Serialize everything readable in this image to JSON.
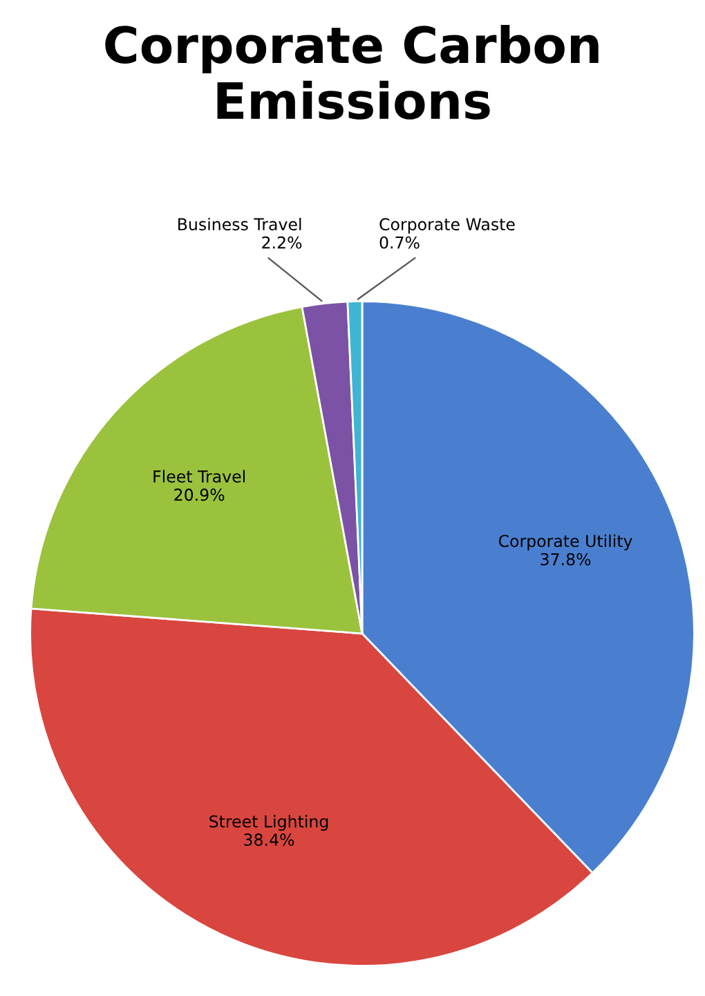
{
  "chart_data": {
    "type": "pie",
    "title": "Corporate Carbon Emissions",
    "categories": [
      "Corporate Utility",
      "Street Lighting",
      "Fleet Travel",
      "Business Travel",
      "Corporate Waste"
    ],
    "values": [
      37.8,
      38.4,
      20.9,
      2.2,
      0.7
    ],
    "colors": [
      "#4a7fcf",
      "#d9463f",
      "#9bc23d",
      "#7b52a6",
      "#3fb5d3"
    ],
    "value_labels": [
      "37.8%",
      "38.4%",
      "20.9%",
      "2.2%",
      "0.7%"
    ],
    "legend": false
  }
}
